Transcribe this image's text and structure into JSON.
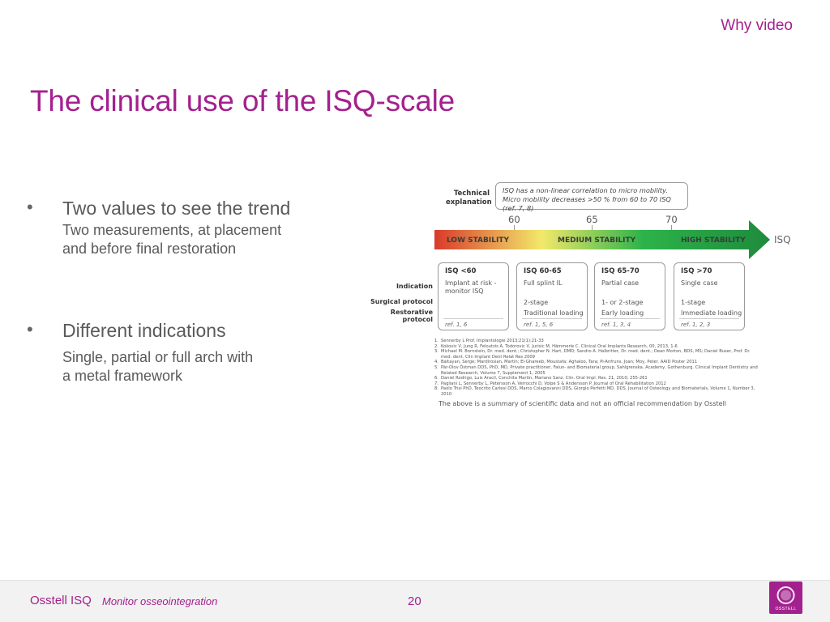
{
  "header": {
    "section_label": "Why video",
    "title": "The clinical use of the ISQ-scale"
  },
  "bullets": [
    {
      "heading": "Two values to see the trend",
      "sub_lines": [
        "Two measurements, at placement",
        "and before final restoration"
      ]
    },
    {
      "heading": "Different indications",
      "sub_lines": [
        "Single, partial or full arch with",
        "a metal framework"
      ]
    }
  ],
  "figure": {
    "technical_label_lines": [
      "Technical",
      "explanation"
    ],
    "callout_lines": [
      "ISQ has a non-linear correlation to micro mobility.",
      "Micro mobility decreases >50 % from 60 to 70 ISQ (ref. 7, 8)"
    ],
    "ticks": [
      "60",
      "65",
      "70"
    ],
    "scale_end_label": "ISQ",
    "stability_labels": {
      "low": "LOW STABILITY",
      "medium": "MEDIUM STABILITY",
      "high": "HIGH STABILITY"
    },
    "gradient_colors": {
      "red": "#d93a2b",
      "yellow": "#f2e96a",
      "green": "#2db34a",
      "dark_green": "#1e8b3c"
    },
    "row_labels": {
      "indication": "Indication",
      "surgical": "Surgical protocol",
      "restorative": "Restorative protocol"
    },
    "columns": [
      {
        "header": "ISQ <60",
        "indication": "Implant at risk - monitor ISQ",
        "surgical": "",
        "restorative": "",
        "ref": "ref. 1, 6"
      },
      {
        "header": "ISQ 60-65",
        "indication": "Full splint IL",
        "surgical": "2-stage",
        "restorative": "Traditional loading",
        "ref": "ref. 1, 5, 6"
      },
      {
        "header": "ISQ 65-70",
        "indication": "Partial case",
        "surgical": "1- or 2-stage",
        "restorative": "Early loading",
        "ref": "ref. 1, 3, 4"
      },
      {
        "header": "ISQ >70",
        "indication": "Single case",
        "surgical": "1-stage",
        "restorative": "Immediate loading",
        "ref": "ref. 1, 2, 3"
      }
    ],
    "references": [
      "Sennerby L Prof. Implantologie 2013;21(1):21-33",
      "Kokovic V, Jung R, Feloutzis A, Todorovic V, Jurisic M, Hämmerle C. Clinical Oral Implants Research, 00, 2013, 1-6",
      "Michael M. Bornstein, Dr. med. dent.; Christopher N. Hart, DMD; Sandro A. Halbritter, Dr. med. dent.; Dean Morton, BDS, MS; Daniel Buser, Prof. Dr. med. dent. Clin Implant Dent Relat Res 2009",
      "Baltayan, Serge; Mardirosian, Martin; El-Ghareeb, Moustafa; Aghaloo, Tara; Pi-Anfruns, Joan; Moy, Peter. AAID Poster 2011",
      "Pär-Olov Östman DDS, PhD, MD, Private practitioner, Falun- and Biomaterial group, Sahlgrenska. Academy, Gothenburg. Clinical Implant Dentistry and Related Research, Volume 7, Supplement 1, 2005",
      "Daniel Rodrigo, Luis Aracil, Conchita Martin, Mariano Sanz. Clin. Oral Impl. Res. 21, 2010; 255-261",
      "Pagliani L, Sennerby L, Petersson A, Verrocchi D, Volpe S & Andersson P. Journal of Oral Rehabilitation 2012",
      "Paolo Trisi PhD, Teocrito Carlesi DDS, Marco Colagiovanni DDS, Giorgio Perfetti MD, DDS. Journal of Osteology and Biomaterials, Volume 1, Number 3, 2010"
    ],
    "disclaimer": "The above is a summary of scientific data and not an official recommendation by Osstell"
  },
  "footer": {
    "brand": "Osstell ISQ",
    "tagline": "Monitor osseointegration",
    "page_number": "20",
    "logo_text": "OSSTELL",
    "accent_color": "#a3218e"
  }
}
